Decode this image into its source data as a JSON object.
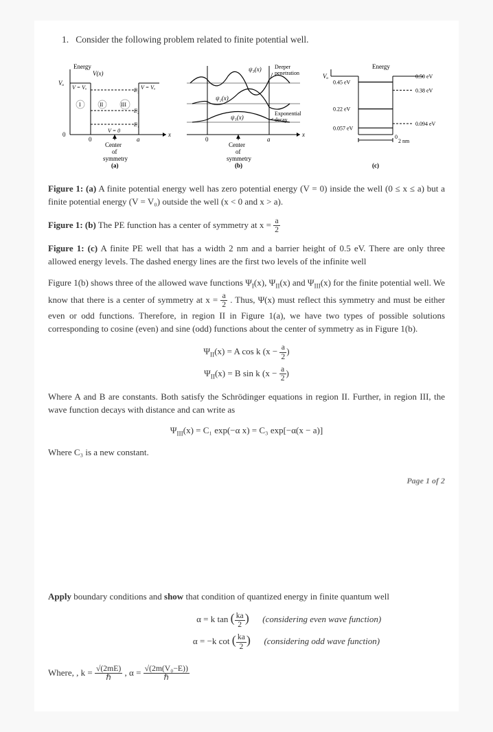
{
  "question": {
    "number": "1.",
    "text": "Consider the following problem related to finite potential well."
  },
  "figA": {
    "axisY": "Energy",
    "Vx": "V(x)",
    "Vo_left": "Vₒ",
    "VeqVo1": "V = Vₒ",
    "VeqVo2": "V = Vₒ",
    "I": "I",
    "II": "II",
    "III": "III",
    "E3": "E₃",
    "E2": "E₂",
    "E1": "E₁",
    "Veq0": "V = 0",
    "zero": "0",
    "a_lbl": "a",
    "center": "Center",
    "of": "of",
    "sym": "symmetry",
    "tag": "(a)",
    "xlbl": "x",
    "colors": {
      "line": "#000",
      "dash": "#000",
      "arrow": "#000"
    }
  },
  "figB": {
    "psi3": "ψ₃(x)",
    "psi2": "ψ₂(x)",
    "psi1": "ψ₁(x)",
    "deeper": "Deeper",
    "penet": "penetration",
    "expo": "Exponential",
    "decay": "decay",
    "zero": "0",
    "center": "Center",
    "of": "of",
    "sym": "symmetry",
    "a_lbl": "a",
    "xlbl": "x",
    "tag": "(b)"
  },
  "figC": {
    "axisY": "Energy",
    "Vo": "Vₒ",
    "zero": "0",
    "levels": [
      {
        "E": 0.45,
        "dash": 0.5,
        "lblE": "0.45 eV",
        "lblDash": "0.50 eV"
      },
      {
        "E": 0.22,
        "dash": 0.38,
        "lblE": "0.22 eV",
        "lblDash": "0.38 eV"
      },
      {
        "E": 0.057,
        "dash": 0.094,
        "lblE": "0.057 eV",
        "lblDash": "0.094 eV"
      }
    ],
    "width_lbl": "2 nm",
    "tag": "(c)",
    "Vo_val": 0.5
  },
  "cap_a_b": "Figure 1: (a)",
  "cap_a_t": " A finite potential energy well has zero potential energy (V = 0) inside the well (0 ≤ x ≤ a) but a finite potential energy (V = V₀) outside the well (x < 0 and x > a).",
  "cap_b_b": "Figure 1: (b)",
  "cap_b_t": " The PE function has a center of symmetry at x = ",
  "cap_b_frac_n": "a",
  "cap_b_frac_d": "2",
  "cap_c_b": "Figure 1: (c)",
  "cap_c_t": " A finite PE well that has a width 2 nm and a barrier height of 0.5 eV. There are only three allowed energy levels. The dashed energy lines are the first two levels of the infinite well",
  "para1a": "Figure 1(b) shows three of the allowed wave functions Ψ",
  "para1b": "(x), Ψ",
  "para1c": "(x) and Ψ",
  "para1d": "(x) for the finite potential well. We know that there is a center of symmetry at x = ",
  "para1e": " . Thus, Ψ(x) must reflect this symmetry and must be either even or odd functions. Therefore, in region II in Figure 1(a), we have two types of possible solutions corresponding to cosine (even) and sine (odd) functions about the center of symmetry as in Figure 1(b).",
  "sub_I": "I",
  "sub_II": "II",
  "sub_III": "III",
  "frac_a": "a",
  "frac_2": "2",
  "eq1": "Ψ",
  "eq1b": "(x) = A cos k (x − ",
  "eq2": "Ψ",
  "eq2b": "(x) = B sin k (x − ",
  "eq_close": ")",
  "para2": "Where A and B are constants. Both satisfy the Schrödinger equations in region II. Further, in region III, the wave function decays with distance and can write as",
  "eq3a": "Ψ",
  "eq3b": "(x) = C₁ exp(−α x) = C₃ exp[−α(x − a)]",
  "para3": "Where C₃ is a new constant.",
  "footer": "Page 1 of 2",
  "apply_b": "Apply",
  "apply_t": " boundary conditions and ",
  "show_b": "show",
  "apply_t2": " that condition of quantized energy in finite quantum well",
  "bc1_l": "α = k tan",
  "bc1_arg_n": "ka",
  "bc1_arg_d": "2",
  "bc1_r": "(considering even wave function)",
  "bc2_l": "α = −k cot",
  "bc2_arg_n": "ka",
  "bc2_arg_d": "2",
  "bc2_r": "(considering odd wave function)",
  "where_l": "Where, ,  k = ",
  "where_k_n": "√(2mE)",
  "where_k_d": "ℏ",
  "where_sep": " ,  α = ",
  "where_a_n": "√(2m(V₀−E))",
  "where_a_d": "ℏ"
}
